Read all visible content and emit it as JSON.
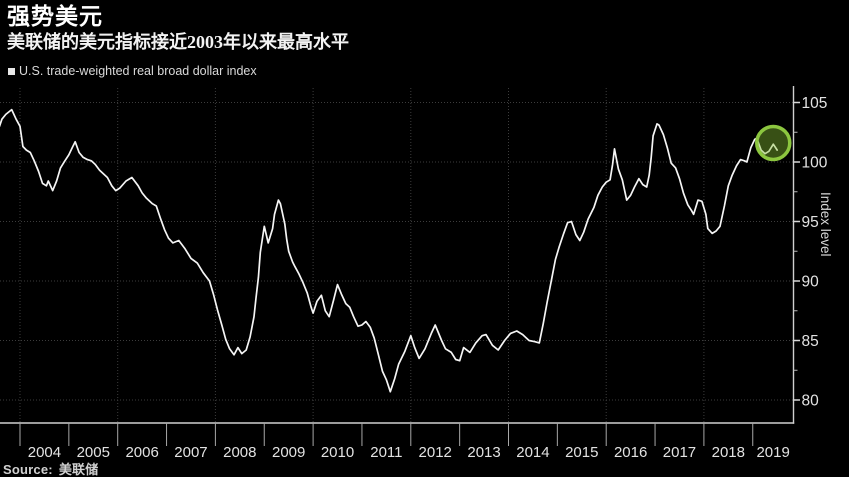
{
  "header": {
    "title": "强势美元",
    "subtitle": "美联储的美元指标接近2003年以来最高水平"
  },
  "legend": {
    "marker": "square",
    "label": "U.S. trade-weighted real broad dollar index"
  },
  "source": {
    "label": "Source:",
    "value": "美联储"
  },
  "axis": {
    "y_title": "Index level"
  },
  "chart_data": {
    "type": "line",
    "title": "强势美元",
    "subtitle": "美联储的美元指标接近2003年以来最高水平",
    "xlabel": "",
    "ylabel": "Index level",
    "x_ticks": [
      2004,
      2005,
      2006,
      2007,
      2008,
      2009,
      2010,
      2011,
      2012,
      2013,
      2014,
      2015,
      2016,
      2017,
      2018,
      2019
    ],
    "y_ticks": [
      80,
      85,
      90,
      95,
      100,
      105
    ],
    "y_minor_ticks": [
      82.5,
      87.5,
      92.5,
      97.5,
      102.5
    ],
    "xlim": [
      2003.58,
      2019.84
    ],
    "ylim": [
      78.1,
      106.2
    ],
    "grid": "dotted",
    "grid_color": "#3c3c3c",
    "axis_color": "#d0d0d0",
    "legend_position": "top-left",
    "line_color": "#f5f5f5",
    "background": "#000000",
    "highlight": {
      "type": "circle",
      "x": 2019.42,
      "y": 101.6,
      "ring_color": "#8cc63f",
      "fill_color": "rgba(134,190,50,0.42)"
    },
    "series": [
      {
        "name": "U.S. trade-weighted real broad dollar index",
        "color": "#f5f5f5",
        "points": [
          [
            2003.58,
            103.0
          ],
          [
            2003.63,
            103.6
          ],
          [
            2003.71,
            104.0
          ],
          [
            2003.83,
            104.4
          ],
          [
            2003.92,
            103.6
          ],
          [
            2004.0,
            103.0
          ],
          [
            2004.06,
            101.3
          ],
          [
            2004.13,
            101.0
          ],
          [
            2004.21,
            100.8
          ],
          [
            2004.29,
            100.1
          ],
          [
            2004.38,
            99.2
          ],
          [
            2004.46,
            98.2
          ],
          [
            2004.54,
            98.0
          ],
          [
            2004.58,
            98.4
          ],
          [
            2004.67,
            97.6
          ],
          [
            2004.75,
            98.4
          ],
          [
            2004.83,
            99.5
          ],
          [
            2004.92,
            100.1
          ],
          [
            2005.0,
            100.6
          ],
          [
            2005.08,
            101.3
          ],
          [
            2005.13,
            101.7
          ],
          [
            2005.21,
            100.8
          ],
          [
            2005.29,
            100.4
          ],
          [
            2005.38,
            100.2
          ],
          [
            2005.46,
            100.1
          ],
          [
            2005.54,
            99.8
          ],
          [
            2005.63,
            99.3
          ],
          [
            2005.71,
            99.0
          ],
          [
            2005.79,
            98.7
          ],
          [
            2005.88,
            98.0
          ],
          [
            2005.96,
            97.6
          ],
          [
            2006.04,
            97.8
          ],
          [
            2006.17,
            98.4
          ],
          [
            2006.29,
            98.7
          ],
          [
            2006.42,
            98.0
          ],
          [
            2006.5,
            97.4
          ],
          [
            2006.58,
            97.0
          ],
          [
            2006.71,
            96.5
          ],
          [
            2006.79,
            96.3
          ],
          [
            2006.88,
            95.2
          ],
          [
            2006.96,
            94.3
          ],
          [
            2007.04,
            93.6
          ],
          [
            2007.13,
            93.2
          ],
          [
            2007.25,
            93.4
          ],
          [
            2007.38,
            92.7
          ],
          [
            2007.5,
            91.9
          ],
          [
            2007.63,
            91.5
          ],
          [
            2007.75,
            90.7
          ],
          [
            2007.88,
            90.0
          ],
          [
            2007.96,
            88.9
          ],
          [
            2008.04,
            87.6
          ],
          [
            2008.13,
            86.3
          ],
          [
            2008.21,
            85.1
          ],
          [
            2008.29,
            84.3
          ],
          [
            2008.38,
            83.8
          ],
          [
            2008.46,
            84.4
          ],
          [
            2008.54,
            83.9
          ],
          [
            2008.63,
            84.2
          ],
          [
            2008.71,
            85.3
          ],
          [
            2008.79,
            87.0
          ],
          [
            2008.83,
            88.5
          ],
          [
            2008.88,
            90.3
          ],
          [
            2008.92,
            92.4
          ],
          [
            2009.0,
            94.6
          ],
          [
            2009.08,
            93.2
          ],
          [
            2009.17,
            94.4
          ],
          [
            2009.21,
            95.6
          ],
          [
            2009.29,
            96.8
          ],
          [
            2009.33,
            96.5
          ],
          [
            2009.42,
            94.8
          ],
          [
            2009.46,
            93.5
          ],
          [
            2009.5,
            92.5
          ],
          [
            2009.58,
            91.6
          ],
          [
            2009.63,
            91.2
          ],
          [
            2009.71,
            90.6
          ],
          [
            2009.79,
            89.9
          ],
          [
            2009.88,
            89.0
          ],
          [
            2009.96,
            87.8
          ],
          [
            2010.0,
            87.3
          ],
          [
            2010.08,
            88.3
          ],
          [
            2010.17,
            88.8
          ],
          [
            2010.25,
            87.5
          ],
          [
            2010.33,
            87.0
          ],
          [
            2010.42,
            88.4
          ],
          [
            2010.5,
            89.7
          ],
          [
            2010.58,
            88.9
          ],
          [
            2010.67,
            88.1
          ],
          [
            2010.75,
            87.8
          ],
          [
            2010.83,
            87.0
          ],
          [
            2010.92,
            86.2
          ],
          [
            2011.0,
            86.3
          ],
          [
            2011.08,
            86.6
          ],
          [
            2011.17,
            86.1
          ],
          [
            2011.25,
            85.2
          ],
          [
            2011.33,
            83.9
          ],
          [
            2011.42,
            82.4
          ],
          [
            2011.5,
            81.7
          ],
          [
            2011.58,
            80.7
          ],
          [
            2011.67,
            81.8
          ],
          [
            2011.75,
            83.0
          ],
          [
            2011.88,
            84.1
          ],
          [
            2012.0,
            85.4
          ],
          [
            2012.08,
            84.4
          ],
          [
            2012.17,
            83.5
          ],
          [
            2012.29,
            84.3
          ],
          [
            2012.42,
            85.6
          ],
          [
            2012.5,
            86.3
          ],
          [
            2012.63,
            85.0
          ],
          [
            2012.71,
            84.3
          ],
          [
            2012.83,
            84.0
          ],
          [
            2012.92,
            83.4
          ],
          [
            2013.0,
            83.3
          ],
          [
            2013.08,
            84.4
          ],
          [
            2013.21,
            84.0
          ],
          [
            2013.33,
            84.8
          ],
          [
            2013.46,
            85.4
          ],
          [
            2013.54,
            85.5
          ],
          [
            2013.67,
            84.6
          ],
          [
            2013.79,
            84.2
          ],
          [
            2013.92,
            85.0
          ],
          [
            2014.04,
            85.6
          ],
          [
            2014.17,
            85.8
          ],
          [
            2014.29,
            85.5
          ],
          [
            2014.42,
            85.0
          ],
          [
            2014.54,
            84.9
          ],
          [
            2014.63,
            84.8
          ],
          [
            2014.71,
            86.4
          ],
          [
            2014.79,
            88.2
          ],
          [
            2014.88,
            90.1
          ],
          [
            2014.96,
            91.8
          ],
          [
            2015.04,
            92.9
          ],
          [
            2015.13,
            94.0
          ],
          [
            2015.21,
            94.9
          ],
          [
            2015.29,
            95.0
          ],
          [
            2015.38,
            93.9
          ],
          [
            2015.46,
            93.4
          ],
          [
            2015.54,
            94.1
          ],
          [
            2015.63,
            95.2
          ],
          [
            2015.75,
            96.2
          ],
          [
            2015.83,
            97.2
          ],
          [
            2015.92,
            97.9
          ],
          [
            2016.0,
            98.3
          ],
          [
            2016.08,
            98.5
          ],
          [
            2016.13,
            99.8
          ],
          [
            2016.17,
            101.1
          ],
          [
            2016.25,
            99.4
          ],
          [
            2016.33,
            98.5
          ],
          [
            2016.42,
            96.8
          ],
          [
            2016.5,
            97.2
          ],
          [
            2016.58,
            97.9
          ],
          [
            2016.67,
            98.6
          ],
          [
            2016.75,
            98.1
          ],
          [
            2016.83,
            97.9
          ],
          [
            2016.88,
            98.9
          ],
          [
            2016.92,
            100.3
          ],
          [
            2016.96,
            102.2
          ],
          [
            2017.04,
            103.2
          ],
          [
            2017.08,
            103.1
          ],
          [
            2017.17,
            102.3
          ],
          [
            2017.25,
            101.2
          ],
          [
            2017.33,
            99.9
          ],
          [
            2017.42,
            99.5
          ],
          [
            2017.5,
            98.6
          ],
          [
            2017.58,
            97.4
          ],
          [
            2017.67,
            96.4
          ],
          [
            2017.75,
            95.9
          ],
          [
            2017.79,
            95.6
          ],
          [
            2017.88,
            96.8
          ],
          [
            2017.96,
            96.7
          ],
          [
            2018.04,
            95.6
          ],
          [
            2018.08,
            94.4
          ],
          [
            2018.17,
            94.0
          ],
          [
            2018.25,
            94.2
          ],
          [
            2018.33,
            94.6
          ],
          [
            2018.42,
            96.3
          ],
          [
            2018.5,
            98.0
          ],
          [
            2018.58,
            98.9
          ],
          [
            2018.67,
            99.7
          ],
          [
            2018.75,
            100.2
          ],
          [
            2018.83,
            100.1
          ],
          [
            2018.88,
            100.0
          ],
          [
            2018.96,
            101.2
          ],
          [
            2019.04,
            101.9
          ],
          [
            2019.08,
            102.0
          ],
          [
            2019.17,
            101.0
          ],
          [
            2019.25,
            100.7
          ],
          [
            2019.33,
            100.9
          ],
          [
            2019.42,
            101.5
          ],
          [
            2019.5,
            101.0
          ]
        ]
      }
    ]
  }
}
